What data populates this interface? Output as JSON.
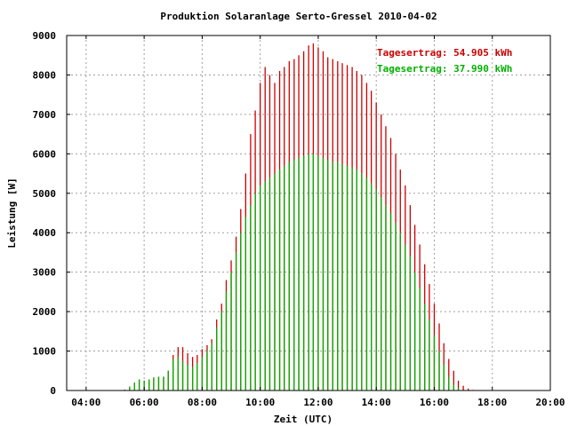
{
  "chart_data": {
    "type": "bar",
    "title": "Produktion Solaranlage Serto-Gressel 2010-04-02",
    "xlabel": "Zeit (UTC)",
    "ylabel": "Leistung [W]",
    "xlim": [
      3.33,
      20.0
    ],
    "ylim": [
      0,
      9000
    ],
    "x_ticks": [
      4,
      6,
      8,
      10,
      12,
      14,
      16,
      18,
      20
    ],
    "x_tick_labels": [
      "04:00",
      "06:00",
      "08:00",
      "10:00",
      "12:00",
      "14:00",
      "16:00",
      "18:00",
      "20:00"
    ],
    "y_ticks": [
      0,
      1000,
      2000,
      3000,
      4000,
      5000,
      6000,
      7000,
      8000,
      9000
    ],
    "y_tick_labels": [
      "0",
      "1000",
      "2000",
      "3000",
      "4000",
      "5000",
      "6000",
      "7000",
      "8000",
      "9000"
    ],
    "grid": true,
    "legend_position": "top-right",
    "bar_interval_minutes": 5,
    "series": [
      {
        "label": "Tagesertrag: 54.905 kWh",
        "color": "#cc0000",
        "points": [
          [
            5.0,
            5
          ],
          [
            5.2,
            10
          ],
          [
            5.33,
            20
          ],
          [
            5.5,
            100
          ],
          [
            5.67,
            200
          ],
          [
            5.83,
            280
          ],
          [
            6.0,
            250
          ],
          [
            6.17,
            280
          ],
          [
            6.33,
            330
          ],
          [
            6.5,
            350
          ],
          [
            6.67,
            350
          ],
          [
            6.83,
            500
          ],
          [
            7.0,
            900
          ],
          [
            7.17,
            1100
          ],
          [
            7.33,
            1100
          ],
          [
            7.5,
            950
          ],
          [
            7.67,
            850
          ],
          [
            7.83,
            900
          ],
          [
            8.0,
            1050
          ],
          [
            8.17,
            1150
          ],
          [
            8.33,
            1300
          ],
          [
            8.5,
            1800
          ],
          [
            8.67,
            2200
          ],
          [
            8.83,
            2800
          ],
          [
            9.0,
            3300
          ],
          [
            9.17,
            3900
          ],
          [
            9.33,
            4600
          ],
          [
            9.5,
            5500
          ],
          [
            9.67,
            6500
          ],
          [
            9.83,
            7100
          ],
          [
            10.0,
            7800
          ],
          [
            10.17,
            8200
          ],
          [
            10.33,
            8000
          ],
          [
            10.5,
            7800
          ],
          [
            10.67,
            8100
          ],
          [
            10.83,
            8200
          ],
          [
            11.0,
            8350
          ],
          [
            11.17,
            8400
          ],
          [
            11.33,
            8500
          ],
          [
            11.5,
            8600
          ],
          [
            11.67,
            8750
          ],
          [
            11.83,
            8800
          ],
          [
            12.0,
            8700
          ],
          [
            12.17,
            8600
          ],
          [
            12.33,
            8450
          ],
          [
            12.5,
            8400
          ],
          [
            12.67,
            8350
          ],
          [
            12.83,
            8300
          ],
          [
            13.0,
            8250
          ],
          [
            13.17,
            8200
          ],
          [
            13.33,
            8100
          ],
          [
            13.5,
            8000
          ],
          [
            13.67,
            7800
          ],
          [
            13.83,
            7600
          ],
          [
            14.0,
            7300
          ],
          [
            14.17,
            7000
          ],
          [
            14.33,
            6700
          ],
          [
            14.5,
            6400
          ],
          [
            14.67,
            6000
          ],
          [
            14.83,
            5600
          ],
          [
            15.0,
            5200
          ],
          [
            15.17,
            4700
          ],
          [
            15.33,
            4200
          ],
          [
            15.5,
            3700
          ],
          [
            15.67,
            3200
          ],
          [
            15.83,
            2700
          ],
          [
            16.0,
            2200
          ],
          [
            16.17,
            1700
          ],
          [
            16.33,
            1200
          ],
          [
            16.5,
            800
          ],
          [
            16.67,
            500
          ],
          [
            16.83,
            250
          ],
          [
            17.0,
            120
          ],
          [
            17.17,
            50
          ],
          [
            17.33,
            15
          ]
        ]
      },
      {
        "label": "Tagesertrag: 37.990 kWh",
        "color": "#00b000",
        "points": [
          [
            5.0,
            5
          ],
          [
            5.2,
            10
          ],
          [
            5.33,
            20
          ],
          [
            5.5,
            100
          ],
          [
            5.67,
            200
          ],
          [
            5.83,
            280
          ],
          [
            6.0,
            250
          ],
          [
            6.17,
            280
          ],
          [
            6.33,
            330
          ],
          [
            6.5,
            350
          ],
          [
            6.67,
            350
          ],
          [
            6.83,
            500
          ],
          [
            7.0,
            800
          ],
          [
            7.17,
            850
          ],
          [
            7.33,
            750
          ],
          [
            7.5,
            650
          ],
          [
            7.67,
            600
          ],
          [
            7.83,
            700
          ],
          [
            8.0,
            850
          ],
          [
            8.17,
            1000
          ],
          [
            8.33,
            1200
          ],
          [
            8.5,
            1600
          ],
          [
            8.67,
            2000
          ],
          [
            8.83,
            2500
          ],
          [
            9.0,
            3000
          ],
          [
            9.17,
            3500
          ],
          [
            9.33,
            4000
          ],
          [
            9.5,
            4400
          ],
          [
            9.67,
            4700
          ],
          [
            9.83,
            5000
          ],
          [
            10.0,
            5200
          ],
          [
            10.17,
            5300
          ],
          [
            10.33,
            5400
          ],
          [
            10.5,
            5500
          ],
          [
            10.67,
            5600
          ],
          [
            10.83,
            5700
          ],
          [
            11.0,
            5800
          ],
          [
            11.17,
            5850
          ],
          [
            11.33,
            5900
          ],
          [
            11.5,
            5950
          ],
          [
            11.67,
            6000
          ],
          [
            11.83,
            6000
          ],
          [
            12.0,
            5950
          ],
          [
            12.17,
            5900
          ],
          [
            12.33,
            5850
          ],
          [
            12.5,
            5800
          ],
          [
            12.67,
            5800
          ],
          [
            12.83,
            5750
          ],
          [
            13.0,
            5700
          ],
          [
            13.17,
            5650
          ],
          [
            13.33,
            5600
          ],
          [
            13.5,
            5500
          ],
          [
            13.67,
            5400
          ],
          [
            13.83,
            5250
          ],
          [
            14.0,
            5100
          ],
          [
            14.17,
            4900
          ],
          [
            14.33,
            4700
          ],
          [
            14.5,
            4500
          ],
          [
            14.67,
            4250
          ],
          [
            14.83,
            4000
          ],
          [
            15.0,
            3700
          ],
          [
            15.17,
            3400
          ],
          [
            15.33,
            3000
          ],
          [
            15.5,
            2600
          ],
          [
            15.67,
            2200
          ],
          [
            15.83,
            1800
          ],
          [
            16.0,
            1400
          ],
          [
            16.17,
            1000
          ],
          [
            16.33,
            650
          ],
          [
            16.5,
            350
          ],
          [
            16.67,
            150
          ],
          [
            16.83,
            60
          ],
          [
            17.0,
            20
          ],
          [
            17.17,
            5
          ],
          [
            17.33,
            0
          ]
        ]
      }
    ]
  }
}
